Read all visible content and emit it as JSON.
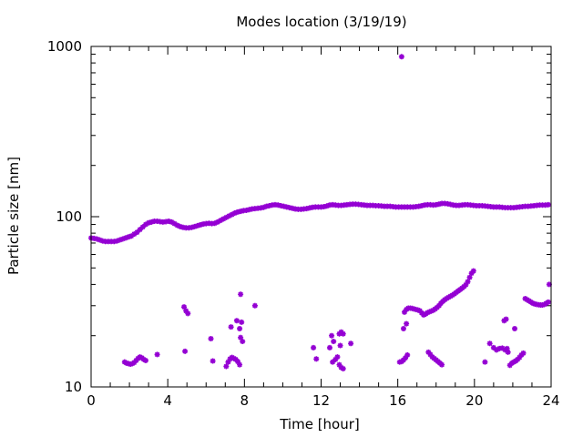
{
  "chart_data": {
    "type": "scatter",
    "title": "Modes location (3/19/19)",
    "xlabel": "Time [hour]",
    "ylabel": "Particle size [nm]",
    "xlim": [
      0,
      24
    ],
    "ylim": [
      10,
      1000
    ],
    "yscale": "log",
    "xticks": [
      "0",
      "4",
      "8",
      "12",
      "16",
      "20",
      "24"
    ],
    "yticks": [
      "10",
      "100",
      "1000"
    ],
    "grid": false,
    "legend": "none",
    "marker_color": "#9400d3",
    "series": [
      {
        "values": [
          [
            0.0,
            75
          ],
          [
            0.15,
            74.5
          ],
          [
            0.3,
            74
          ],
          [
            0.45,
            73
          ],
          [
            0.6,
            72
          ],
          [
            0.75,
            71.5
          ],
          [
            0.9,
            71.5
          ],
          [
            1.05,
            71.5
          ],
          [
            1.2,
            71.5
          ],
          [
            1.35,
            72
          ],
          [
            1.5,
            73
          ],
          [
            1.65,
            74
          ],
          [
            1.8,
            75
          ],
          [
            1.95,
            76
          ],
          [
            2.1,
            77
          ],
          [
            2.25,
            79
          ],
          [
            2.4,
            81
          ],
          [
            2.55,
            84
          ],
          [
            2.7,
            87
          ],
          [
            2.85,
            90
          ],
          [
            3.0,
            92
          ],
          [
            3.15,
            93
          ],
          [
            3.3,
            94
          ],
          [
            3.45,
            94
          ],
          [
            3.6,
            93.5
          ],
          [
            3.75,
            93
          ],
          [
            3.9,
            93.5
          ],
          [
            4.05,
            94
          ],
          [
            4.2,
            93
          ],
          [
            4.35,
            91
          ],
          [
            4.5,
            89
          ],
          [
            4.65,
            87.5
          ],
          [
            4.8,
            86.5
          ],
          [
            4.95,
            86
          ],
          [
            5.1,
            86
          ],
          [
            5.25,
            86.5
          ],
          [
            5.4,
            87.5
          ],
          [
            5.55,
            88.5
          ],
          [
            5.7,
            89.5
          ],
          [
            5.85,
            90.5
          ],
          [
            6.0,
            91
          ],
          [
            6.15,
            91.5
          ],
          [
            6.3,
            91
          ],
          [
            6.45,
            91.5
          ],
          [
            6.6,
            93
          ],
          [
            6.75,
            95
          ],
          [
            6.9,
            97
          ],
          [
            7.05,
            99
          ],
          [
            7.2,
            101
          ],
          [
            7.35,
            103
          ],
          [
            7.5,
            105
          ],
          [
            7.65,
            106.5
          ],
          [
            7.8,
            107.5
          ],
          [
            7.95,
            108.5
          ],
          [
            8.1,
            109
          ],
          [
            8.25,
            110
          ],
          [
            8.4,
            111
          ],
          [
            8.55,
            111.5
          ],
          [
            8.7,
            112
          ],
          [
            8.85,
            112.5
          ],
          [
            9.0,
            113.5
          ],
          [
            9.15,
            115
          ],
          [
            9.3,
            116
          ],
          [
            9.45,
            117
          ],
          [
            9.6,
            117.5
          ],
          [
            9.75,
            117
          ],
          [
            9.9,
            116
          ],
          [
            10.05,
            115
          ],
          [
            10.2,
            114
          ],
          [
            10.35,
            113
          ],
          [
            10.5,
            112
          ],
          [
            10.65,
            111
          ],
          [
            10.8,
            110.5
          ],
          [
            10.95,
            110.5
          ],
          [
            11.1,
            111
          ],
          [
            11.25,
            111.5
          ],
          [
            11.4,
            112.5
          ],
          [
            11.55,
            113.5
          ],
          [
            11.7,
            114
          ],
          [
            11.85,
            114
          ],
          [
            12.0,
            114
          ],
          [
            12.15,
            114.5
          ],
          [
            12.3,
            115.5
          ],
          [
            12.45,
            117
          ],
          [
            12.6,
            117.5
          ],
          [
            12.75,
            117
          ],
          [
            12.9,
            116.5
          ],
          [
            13.05,
            116.5
          ],
          [
            13.2,
            117
          ],
          [
            13.35,
            117.5
          ],
          [
            13.5,
            118
          ],
          [
            13.65,
            118.5
          ],
          [
            13.8,
            118.5
          ],
          [
            13.95,
            118
          ],
          [
            14.1,
            117.5
          ],
          [
            14.25,
            117
          ],
          [
            14.4,
            116.5
          ],
          [
            14.55,
            116.5
          ],
          [
            14.7,
            116.5
          ],
          [
            14.85,
            116
          ],
          [
            15.0,
            116
          ],
          [
            15.15,
            115.5
          ],
          [
            15.3,
            115
          ],
          [
            15.45,
            115
          ],
          [
            15.6,
            115
          ],
          [
            15.75,
            114.5
          ],
          [
            15.9,
            114
          ],
          [
            16.05,
            114
          ],
          [
            16.2,
            114
          ],
          [
            16.35,
            114
          ],
          [
            16.5,
            114
          ],
          [
            16.65,
            114
          ],
          [
            16.8,
            114
          ],
          [
            16.95,
            114.5
          ],
          [
            17.1,
            115
          ],
          [
            17.25,
            116
          ],
          [
            17.4,
            117
          ],
          [
            17.55,
            117.5
          ],
          [
            17.7,
            117.5
          ],
          [
            17.85,
            117
          ],
          [
            18.0,
            117.5
          ],
          [
            18.15,
            118.5
          ],
          [
            18.3,
            119.5
          ],
          [
            18.45,
            119.5
          ],
          [
            18.6,
            119
          ],
          [
            18.75,
            118
          ],
          [
            18.9,
            117
          ],
          [
            19.05,
            116.5
          ],
          [
            19.2,
            116.5
          ],
          [
            19.35,
            117
          ],
          [
            19.5,
            117.5
          ],
          [
            19.65,
            117.5
          ],
          [
            19.8,
            117
          ],
          [
            19.95,
            116.5
          ],
          [
            20.1,
            116
          ],
          [
            20.25,
            116
          ],
          [
            20.4,
            116
          ],
          [
            20.55,
            115.5
          ],
          [
            20.7,
            115
          ],
          [
            20.85,
            114.5
          ],
          [
            21.0,
            114
          ],
          [
            21.15,
            114
          ],
          [
            21.3,
            114
          ],
          [
            21.45,
            113.5
          ],
          [
            21.6,
            113
          ],
          [
            21.75,
            113
          ],
          [
            21.9,
            113
          ],
          [
            22.05,
            113
          ],
          [
            22.2,
            113.5
          ],
          [
            22.35,
            114
          ],
          [
            22.5,
            114.5
          ],
          [
            22.65,
            115
          ],
          [
            22.8,
            115
          ],
          [
            22.95,
            115.5
          ],
          [
            23.1,
            116
          ],
          [
            23.25,
            116.5
          ],
          [
            23.4,
            117
          ],
          [
            23.55,
            117
          ],
          [
            23.7,
            117
          ],
          [
            23.85,
            117.5
          ]
        ]
      },
      {
        "values": [
          [
            1.75,
            14
          ],
          [
            1.85,
            13.8
          ],
          [
            1.95,
            13.7
          ],
          [
            2.05,
            13.6
          ],
          [
            2.15,
            13.7
          ],
          [
            2.25,
            13.9
          ],
          [
            2.35,
            14.3
          ],
          [
            2.45,
            14.7
          ],
          [
            2.55,
            15
          ],
          [
            2.65,
            14.8
          ],
          [
            2.75,
            14.5
          ],
          [
            2.85,
            14.3
          ],
          [
            3.45,
            15.5
          ],
          [
            4.85,
            29.5
          ],
          [
            4.95,
            28
          ],
          [
            5.05,
            27
          ],
          [
            4.9,
            16.2
          ],
          [
            6.25,
            19.2
          ],
          [
            6.35,
            14.2
          ],
          [
            7.05,
            13.2
          ],
          [
            7.15,
            14
          ],
          [
            7.25,
            14.6
          ],
          [
            7.35,
            14.9
          ],
          [
            7.45,
            14.7
          ],
          [
            7.55,
            14.5
          ],
          [
            7.65,
            14.1
          ],
          [
            7.75,
            13.5
          ],
          [
            7.3,
            22.5
          ],
          [
            7.6,
            24.5
          ],
          [
            7.75,
            22
          ],
          [
            7.85,
            24
          ],
          [
            7.8,
            19.5
          ],
          [
            7.9,
            18.5
          ],
          [
            7.8,
            35
          ],
          [
            8.55,
            30
          ],
          [
            11.6,
            17
          ],
          [
            11.75,
            14.6
          ],
          [
            12.45,
            17
          ],
          [
            12.55,
            20
          ],
          [
            12.65,
            18.5
          ],
          [
            12.6,
            14
          ],
          [
            12.75,
            14.5
          ],
          [
            12.85,
            15
          ],
          [
            12.95,
            13.5
          ],
          [
            13.05,
            13
          ],
          [
            13.15,
            12.8
          ],
          [
            13.0,
            17.5
          ],
          [
            12.95,
            20.5
          ],
          [
            13.05,
            21
          ],
          [
            13.15,
            20.5
          ],
          [
            13.55,
            18
          ],
          [
            16.2,
            870
          ],
          [
            16.1,
            14
          ],
          [
            16.2,
            14.1
          ],
          [
            16.3,
            14.4
          ],
          [
            16.4,
            14.8
          ],
          [
            16.5,
            15.4
          ],
          [
            16.3,
            22
          ],
          [
            16.45,
            23.5
          ],
          [
            16.35,
            27.5
          ],
          [
            16.45,
            28.5
          ],
          [
            16.55,
            29
          ],
          [
            16.65,
            29
          ],
          [
            16.75,
            28.9
          ],
          [
            16.85,
            28.7
          ],
          [
            16.95,
            28.5
          ],
          [
            17.05,
            28.3
          ],
          [
            17.15,
            28
          ],
          [
            17.25,
            27.2
          ],
          [
            17.35,
            26.5
          ],
          [
            17.45,
            26.8
          ],
          [
            17.55,
            27.3
          ],
          [
            17.65,
            27.6
          ],
          [
            17.75,
            27.9
          ],
          [
            17.85,
            28.2
          ],
          [
            17.95,
            28.7
          ],
          [
            18.05,
            29.3
          ],
          [
            18.15,
            30
          ],
          [
            18.25,
            31
          ],
          [
            18.35,
            31.8
          ],
          [
            18.45,
            32.5
          ],
          [
            18.55,
            33.1
          ],
          [
            18.65,
            33.6
          ],
          [
            18.75,
            34.1
          ],
          [
            18.85,
            34.6
          ],
          [
            18.95,
            35.2
          ],
          [
            19.05,
            35.9
          ],
          [
            19.15,
            36.6
          ],
          [
            19.25,
            37.3
          ],
          [
            19.35,
            38
          ],
          [
            19.45,
            38.8
          ],
          [
            19.55,
            39.8
          ],
          [
            19.65,
            41.5
          ],
          [
            19.75,
            44
          ],
          [
            19.85,
            46.5
          ],
          [
            19.95,
            48
          ],
          [
            17.6,
            16
          ],
          [
            17.7,
            15.5
          ],
          [
            17.8,
            15
          ],
          [
            17.9,
            14.7
          ],
          [
            18.0,
            14.4
          ],
          [
            18.1,
            14.1
          ],
          [
            18.2,
            13.8
          ],
          [
            18.3,
            13.5
          ],
          [
            20.55,
            14
          ],
          [
            20.8,
            18
          ],
          [
            21.0,
            17
          ],
          [
            21.15,
            16.5
          ],
          [
            21.3,
            16.8
          ],
          [
            21.45,
            16.9
          ],
          [
            21.6,
            16.5
          ],
          [
            21.7,
            16.8
          ],
          [
            21.55,
            24.5
          ],
          [
            21.65,
            25
          ],
          [
            21.75,
            16
          ],
          [
            22.1,
            22
          ],
          [
            21.85,
            13.4
          ],
          [
            21.95,
            13.8
          ],
          [
            22.05,
            14
          ],
          [
            22.15,
            14.2
          ],
          [
            22.25,
            14.5
          ],
          [
            22.35,
            14.9
          ],
          [
            22.45,
            15.4
          ],
          [
            22.55,
            15.8
          ],
          [
            22.65,
            33
          ],
          [
            22.75,
            32.5
          ],
          [
            22.85,
            32
          ],
          [
            22.95,
            31.5
          ],
          [
            23.05,
            31
          ],
          [
            23.15,
            30.7
          ],
          [
            23.25,
            30.5
          ],
          [
            23.35,
            30.4
          ],
          [
            23.45,
            30.3
          ],
          [
            23.55,
            30.3
          ],
          [
            23.65,
            30.5
          ],
          [
            23.75,
            31
          ],
          [
            23.85,
            31.5
          ],
          [
            23.9,
            40
          ]
        ]
      }
    ]
  }
}
